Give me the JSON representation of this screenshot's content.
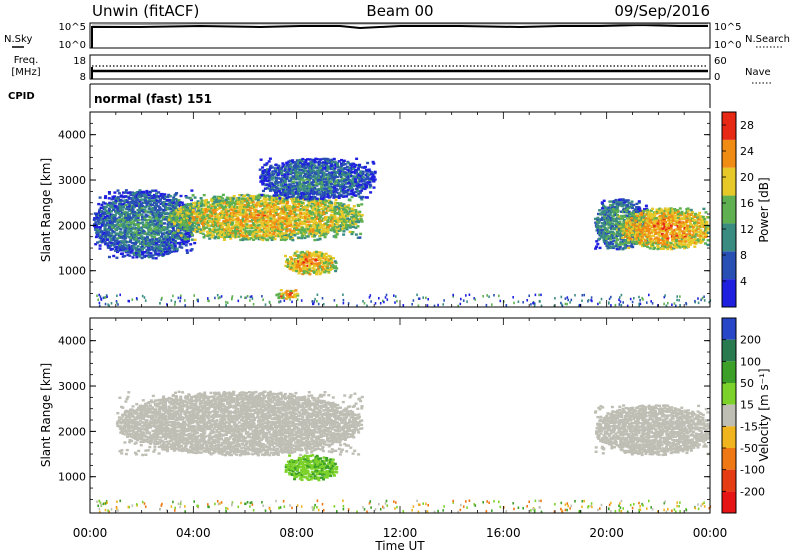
{
  "header": {
    "station": "Unwin (fitACF)",
    "beam": "Beam 00",
    "date": "09/Sep/2016"
  },
  "sky_panel": {
    "label": "N.Sky",
    "left_ticks": [
      "10^5",
      "10^0"
    ],
    "right_ticks": [
      "10^5",
      "10^0"
    ],
    "right_label": "N.Search"
  },
  "freq_panel": {
    "label_line1": "Freq.",
    "label_line2": "[MHz]",
    "left_ticks": [
      "18",
      "8"
    ],
    "right_ticks": [
      "60",
      "0"
    ],
    "right_label": "Nave"
  },
  "cpid": {
    "label": "CPID",
    "value": "normal (fast) 151"
  },
  "power_panel": {
    "ylabel": "Slant Range [km]",
    "yticks": [
      "1000",
      "2000",
      "3000",
      "4000"
    ],
    "colorbar_label": "Power [dB]",
    "colorbar_ticks": [
      "4",
      "8",
      "12",
      "16",
      "20",
      "24",
      "28"
    ],
    "colorbar_colors": [
      "#1f1fe0",
      "#2850b4",
      "#3a8c82",
      "#5fb050",
      "#e6c828",
      "#f08c14",
      "#e62814"
    ]
  },
  "velocity_panel": {
    "ylabel": "Slant Range [km]",
    "yticks": [
      "1000",
      "2000",
      "3000",
      "4000"
    ],
    "colorbar_label": "Velocity [m s⁻¹]",
    "colorbar_ticks": [
      "200",
      "100",
      "50",
      "15",
      "-15",
      "-50",
      "-100",
      "-200"
    ],
    "colorbar_colors": [
      "#2846c8",
      "#2a7a50",
      "#3ca028",
      "#7cd22a",
      "#bebeb4",
      "#f0b41e",
      "#f07814",
      "#e63c14",
      "#e61414"
    ]
  },
  "x_axis": {
    "label": "Time UT",
    "ticks": [
      "00:00",
      "04:00",
      "08:00",
      "12:00",
      "16:00",
      "20:00",
      "00:00"
    ]
  },
  "chart_data": [
    {
      "type": "heatmap",
      "title": "Power",
      "xlabel": "Time UT",
      "ylabel": "Slant Range [km]",
      "xlim": [
        0,
        24
      ],
      "ylim": [
        200,
        4500
      ],
      "colorbar_range": [
        0,
        30
      ],
      "regions": [
        {
          "t0": 0.1,
          "t1": 4.0,
          "r0": 1300,
          "r1": 2800,
          "power": 10
        },
        {
          "t0": 3.0,
          "t1": 10.5,
          "r0": 1700,
          "r1": 2700,
          "power": 20
        },
        {
          "t0": 6.5,
          "t1": 11.0,
          "r0": 2600,
          "r1": 3500,
          "power": 9
        },
        {
          "t0": 7.5,
          "t1": 9.5,
          "r0": 950,
          "r1": 1450,
          "power": 22
        },
        {
          "t0": 7.2,
          "t1": 8.0,
          "r0": 400,
          "r1": 600,
          "power": 24
        },
        {
          "t0": 19.5,
          "t1": 21.5,
          "r0": 1500,
          "r1": 2600,
          "power": 12
        },
        {
          "t0": 20.5,
          "t1": 24.0,
          "r0": 1500,
          "r1": 2400,
          "power": 22
        }
      ]
    },
    {
      "type": "heatmap",
      "title": "Velocity",
      "xlabel": "Time UT",
      "ylabel": "Slant Range [km]",
      "xlim": [
        0,
        24
      ],
      "ylim": [
        200,
        4500
      ],
      "colorbar_range": [
        -200,
        200
      ],
      "regions": [
        {
          "t0": 1.0,
          "t1": 10.5,
          "r0": 1500,
          "r1": 2900,
          "velocity": 0
        },
        {
          "t0": 7.5,
          "t1": 9.5,
          "r0": 950,
          "r1": 1500,
          "velocity": 45
        },
        {
          "t0": 19.5,
          "t1": 24.0,
          "r0": 1500,
          "r1": 2600,
          "velocity": 0
        }
      ]
    }
  ]
}
